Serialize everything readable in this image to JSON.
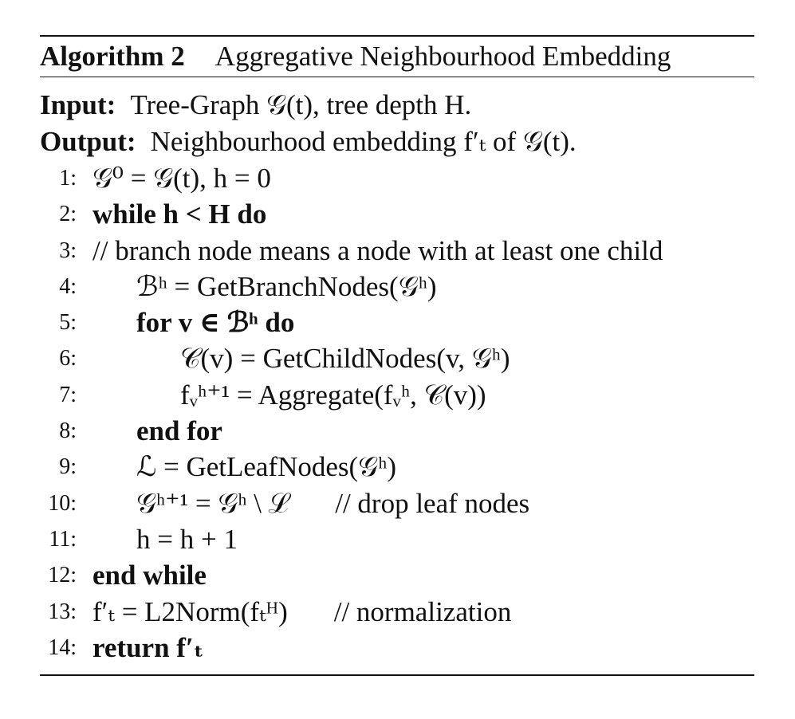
{
  "algorithm": {
    "name": "Algorithm 2",
    "title": "Aggregative Neighbourhood Embedding"
  },
  "input": {
    "keyword": "Input:",
    "text": "Tree-Graph 𝒢(t), tree depth H."
  },
  "output": {
    "keyword": "Output:",
    "text": "Neighbourhood embedding f′ₜ of 𝒢(t)."
  },
  "lines": [
    {
      "num": "1:",
      "text": "𝒢⁰ = 𝒢(t), h = 0"
    },
    {
      "num": "2:",
      "text": "while h < H do"
    },
    {
      "num": "3:",
      "text": "// branch node means a node with at least one child"
    },
    {
      "num": "4:",
      "text": "ℬʰ = GetBranchNodes(𝒢ʰ)"
    },
    {
      "num": "5:",
      "text": "for v ∈ ℬʰ do"
    },
    {
      "num": "6:",
      "text": "𝒞(v) = GetChildNodes(v, 𝒢ʰ)"
    },
    {
      "num": "7:",
      "text": "fᵥʰ⁺¹ = Aggregate(fᵥʰ, 𝒞(v))"
    },
    {
      "num": "8:",
      "text": "end for"
    },
    {
      "num": "9:",
      "text": "ℒ = GetLeafNodes(𝒢ʰ)"
    },
    {
      "num": "10:",
      "text": "𝒢ʰ⁺¹ = 𝒢ʰ \\ ℒ",
      "comment": "// drop leaf nodes"
    },
    {
      "num": "11:",
      "text": "h = h + 1"
    },
    {
      "num": "12:",
      "text": "end while"
    },
    {
      "num": "13:",
      "text": "f′ₜ = L2Norm(fₜᴴ)",
      "comment": "// normalization"
    },
    {
      "num": "14:",
      "text": "return f′ₜ"
    }
  ]
}
